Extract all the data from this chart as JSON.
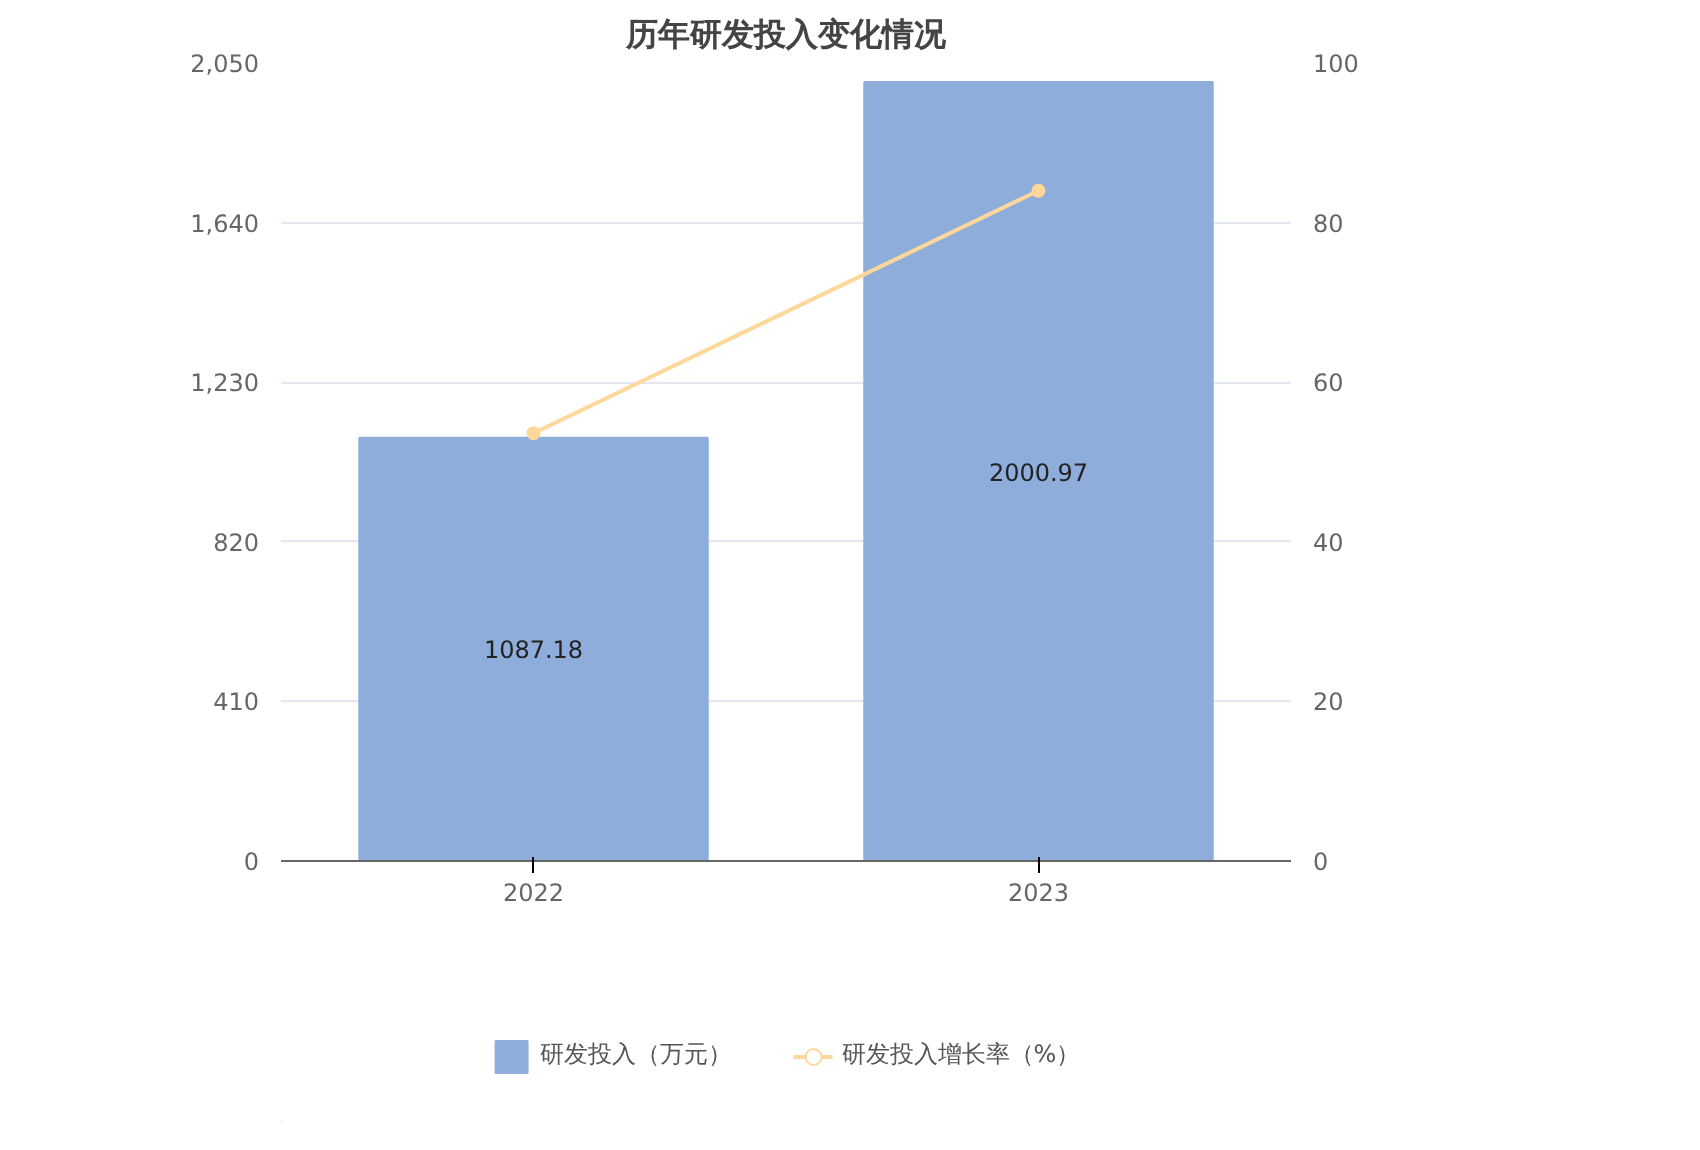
{
  "chart_data": {
    "type": "bar",
    "title": "历年研发投入变化情况",
    "categories": [
      "2022",
      "2023"
    ],
    "series": [
      {
        "name": "研发投入（万元）",
        "color": "#8eaddb",
        "values": [
          1087.18,
          2000.97
        ],
        "value_labels": [
          "1087.18",
          "2000.97"
        ]
      },
      {
        "name": "研发投入增长率（%）",
        "type": "line",
        "axis": "y2",
        "color": "#fdd89a",
        "values": [
          53.6,
          84.0
        ]
      }
    ],
    "ylim": [
      0,
      2050
    ],
    "yticks": [
      0,
      410,
      820,
      {
        "value": 1230,
        "label": "1,230"
      },
      {
        "value": 1640,
        "label": "1,640"
      },
      {
        "value": 2050,
        "label": "2,050"
      }
    ],
    "y2lim": [
      0,
      100
    ],
    "y2ticks": [
      0,
      20,
      40,
      60,
      80,
      100
    ],
    "grid": "y",
    "legend": "bottom",
    "marker": "circle"
  }
}
